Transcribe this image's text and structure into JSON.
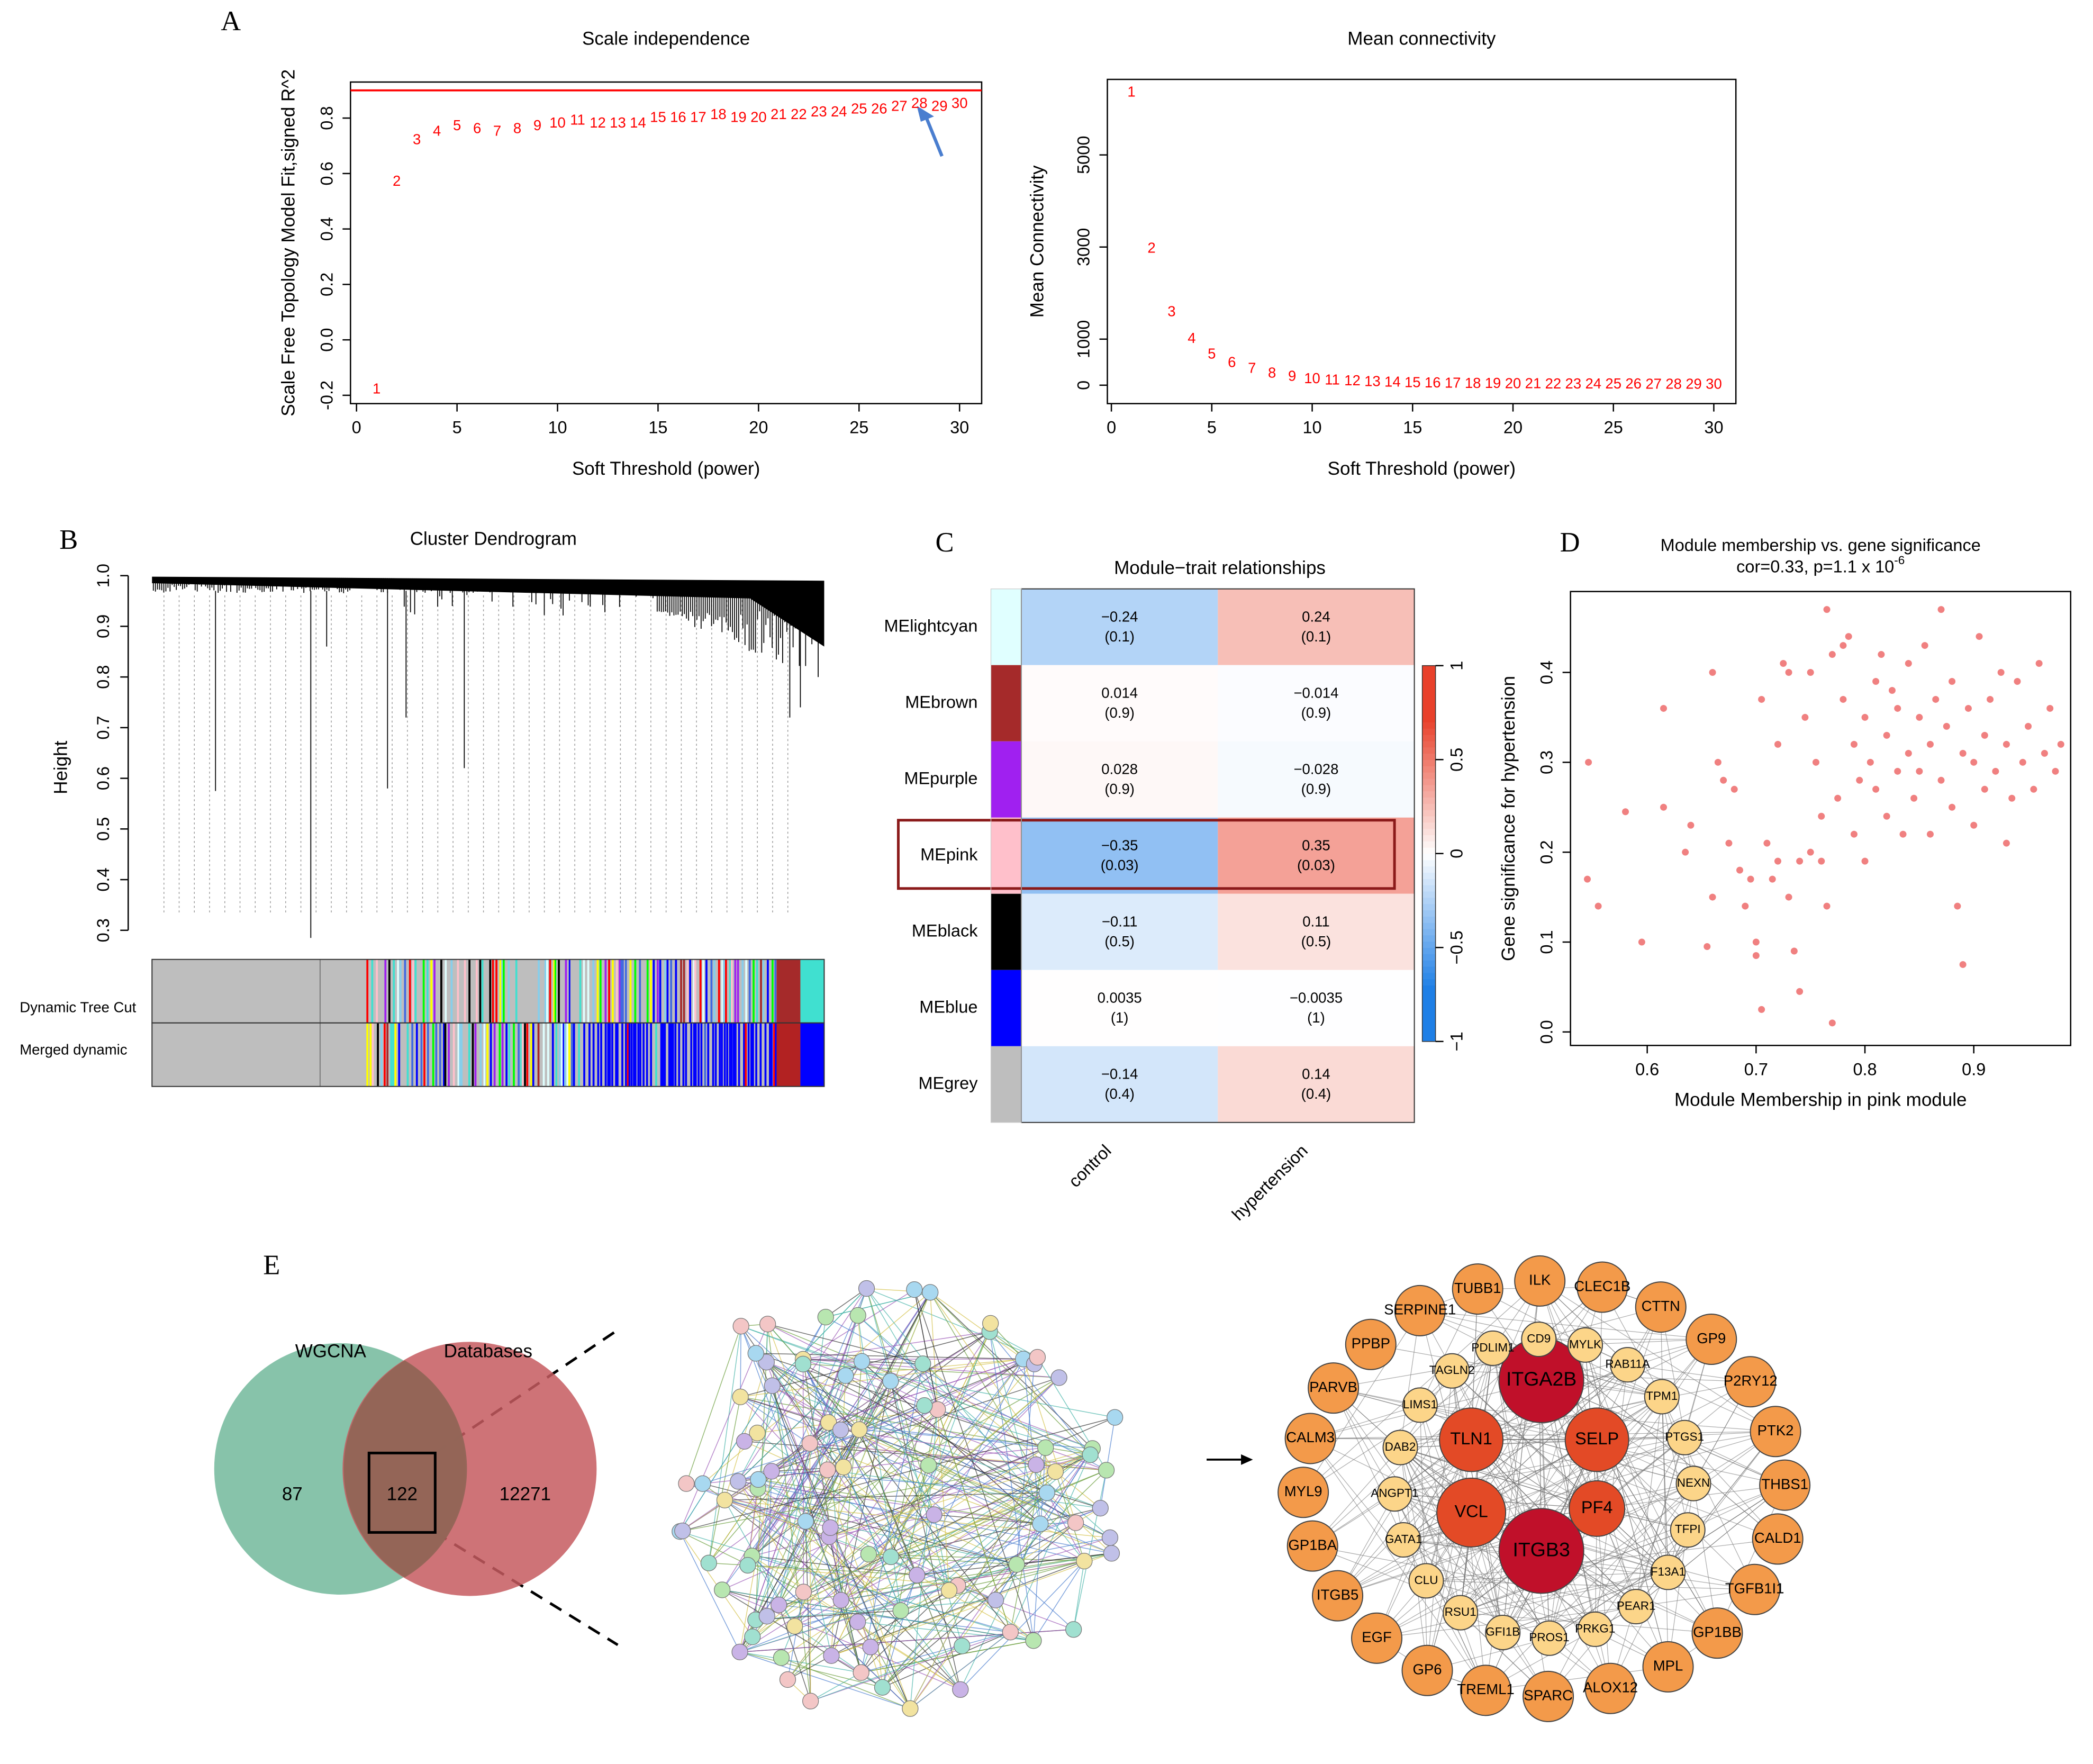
{
  "panel_labels": [
    "A",
    "B",
    "C",
    "D",
    "E"
  ],
  "chart_data": [
    {
      "type": "text-scatter",
      "title": "Scale independence",
      "xlabel": "Soft Threshold (power)",
      "ylabel": "Scale Free Topology Model Fit,signed R^2",
      "x": [
        1,
        2,
        3,
        4,
        5,
        6,
        7,
        8,
        9,
        10,
        11,
        12,
        13,
        14,
        15,
        16,
        17,
        18,
        19,
        20,
        21,
        22,
        23,
        24,
        25,
        26,
        27,
        28,
        29,
        30
      ],
      "values": [
        -0.18,
        0.57,
        0.72,
        0.75,
        0.77,
        0.76,
        0.75,
        0.76,
        0.77,
        0.78,
        0.79,
        0.78,
        0.78,
        0.78,
        0.8,
        0.8,
        0.8,
        0.81,
        0.8,
        0.8,
        0.81,
        0.81,
        0.82,
        0.82,
        0.83,
        0.83,
        0.84,
        0.85,
        0.84,
        0.85
      ],
      "color": "#ff0000",
      "hline": 0.9,
      "hline_color": "#ff0000",
      "xlim": [
        -0.3,
        31.1
      ],
      "ylim": [
        -0.23,
        0.93
      ],
      "xticks": [
        0,
        5,
        10,
        15,
        20,
        25,
        30
      ],
      "yticks": [
        -0.2,
        {
          "value": 0,
          "label": "0.0"
        },
        0.2,
        0.4,
        0.6,
        0.8
      ]
    },
    {
      "type": "text-scatter",
      "title": "Mean connectivity",
      "xlabel": "Soft Threshold (power)",
      "ylabel": "Mean Connectivity",
      "x": [
        1,
        2,
        3,
        4,
        5,
        6,
        7,
        8,
        9,
        10,
        11,
        12,
        13,
        14,
        15,
        16,
        17,
        18,
        19,
        20,
        21,
        22,
        23,
        24,
        25,
        26,
        27,
        28,
        29,
        30
      ],
      "values": [
        6350,
        2960,
        1580,
        1000,
        660,
        480,
        350,
        250,
        180,
        130,
        100,
        80,
        65,
        52,
        43,
        36,
        30,
        26,
        22,
        19,
        17,
        15,
        13,
        12,
        11,
        10,
        9,
        8,
        8,
        7
      ],
      "color": "#ff0000",
      "xlim": [
        -0.2,
        31.1
      ],
      "ylim": [
        -400,
        6640
      ],
      "xticks": [
        0,
        5,
        10,
        15,
        20,
        25,
        30
      ],
      "yticks": [
        0,
        1000,
        3000,
        5000
      ]
    },
    {
      "type": "dendrogram",
      "title": "Cluster Dendrogram",
      "ylabel": "Height",
      "ylim": [
        0.3,
        1.0
      ],
      "yticks": [
        0.3,
        0.4,
        0.5,
        0.6,
        0.7,
        0.8,
        0.9,
        {
          "value": 1,
          "label": "1.0"
        }
      ],
      "bars": [
        "Dynamic Tree Cut",
        "Merged dynamic"
      ]
    },
    {
      "type": "heatmap",
      "title": "Module−trait relationships",
      "rows": [
        "MElightcyan",
        "MEbrown",
        "MEpurple",
        "MEpink",
        "MEblack",
        "MEblue",
        "MEgrey"
      ],
      "row_colors": [
        "#e0ffff",
        "#a52a2a",
        "#a020f0",
        "#ffc0cb",
        "#000000",
        "#0000ff",
        "#bebebe"
      ],
      "columns": [
        "control",
        "hypertension"
      ],
      "values": [
        [
          -0.24,
          0.24
        ],
        [
          0.014,
          -0.014
        ],
        [
          0.028,
          -0.028
        ],
        [
          -0.35,
          0.35
        ],
        [
          -0.11,
          0.11
        ],
        [
          0.0035,
          -0.0035
        ],
        [
          -0.14,
          0.14
        ]
      ],
      "value_labels": [
        [
          "−0.24",
          "0.24"
        ],
        [
          "0.014",
          "−0.014"
        ],
        [
          "0.028",
          "−0.028"
        ],
        [
          "−0.35",
          "0.35"
        ],
        [
          "−0.11",
          "0.11"
        ],
        [
          "0.0035",
          "−0.0035"
        ],
        [
          "−0.14",
          "0.14"
        ]
      ],
      "p_values": [
        [
          0.1,
          0.1
        ],
        [
          0.9,
          0.9
        ],
        [
          0.9,
          0.9
        ],
        [
          0.03,
          0.03
        ],
        [
          0.5,
          0.5
        ],
        [
          1,
          1
        ],
        [
          0.4,
          0.4
        ]
      ],
      "p_labels": [
        [
          "(0.1)",
          "(0.1)"
        ],
        [
          "(0.9)",
          "(0.9)"
        ],
        [
          "(0.9)",
          "(0.9)"
        ],
        [
          "(0.03)",
          "(0.03)"
        ],
        [
          "(0.5)",
          "(0.5)"
        ],
        [
          "(1)",
          "(1)"
        ],
        [
          "(0.4)",
          "(0.4)"
        ]
      ],
      "highlight": "MEpink",
      "highlight_color": "#8b1a1a",
      "colors": [
        "#1e7fe6",
        "#ffffff",
        "#e8402a"
      ],
      "zlim": [
        -1,
        1
      ],
      "zticks": [
        {
          "value": -1,
          "label": "−1"
        },
        {
          "value": -0.5,
          "label": "−0.5"
        },
        0,
        0.5,
        1
      ]
    },
    {
      "type": "scatter",
      "title": "Module membership vs. gene significance",
      "subtitle": "cor=0.33, p=1.1 x 10",
      "subtitle_sup": "-6",
      "xlabel": "Module Membership in pink module",
      "ylabel": "Gene significance for  hypertension",
      "color": "#f08080",
      "x": [
        0.545,
        0.546,
        0.555,
        0.58,
        0.595,
        0.615,
        0.615,
        0.635,
        0.64,
        0.655,
        0.66,
        0.66,
        0.665,
        0.67,
        0.675,
        0.68,
        0.685,
        0.69,
        0.695,
        0.7,
        0.7,
        0.705,
        0.705,
        0.71,
        0.715,
        0.72,
        0.72,
        0.725,
        0.73,
        0.73,
        0.735,
        0.74,
        0.74,
        0.745,
        0.75,
        0.75,
        0.755,
        0.76,
        0.76,
        0.765,
        0.765,
        0.77,
        0.77,
        0.775,
        0.78,
        0.78,
        0.785,
        0.79,
        0.79,
        0.795,
        0.8,
        0.8,
        0.805,
        0.81,
        0.81,
        0.815,
        0.82,
        0.82,
        0.825,
        0.83,
        0.83,
        0.835,
        0.84,
        0.84,
        0.845,
        0.85,
        0.85,
        0.855,
        0.86,
        0.86,
        0.865,
        0.87,
        0.87,
        0.875,
        0.88,
        0.88,
        0.885,
        0.89,
        0.89,
        0.895,
        0.9,
        0.9,
        0.905,
        0.91,
        0.91,
        0.915,
        0.92,
        0.925,
        0.93,
        0.93,
        0.935,
        0.94,
        0.945,
        0.95,
        0.955,
        0.96,
        0.965,
        0.97,
        0.975,
        0.98
      ],
      "values": [
        0.17,
        0.3,
        0.14,
        0.245,
        0.1,
        0.36,
        0.25,
        0.2,
        0.23,
        0.095,
        0.4,
        0.15,
        0.3,
        0.28,
        0.21,
        0.27,
        0.18,
        0.14,
        0.17,
        0.1,
        0.085,
        0.37,
        0.025,
        0.21,
        0.17,
        0.19,
        0.32,
        0.41,
        0.4,
        0.15,
        0.09,
        0.045,
        0.19,
        0.35,
        0.4,
        0.2,
        0.3,
        0.19,
        0.24,
        0.47,
        0.14,
        0.01,
        0.42,
        0.26,
        0.37,
        0.43,
        0.44,
        0.32,
        0.22,
        0.28,
        0.35,
        0.19,
        0.3,
        0.39,
        0.27,
        0.42,
        0.33,
        0.24,
        0.38,
        0.29,
        0.36,
        0.22,
        0.41,
        0.31,
        0.26,
        0.35,
        0.29,
        0.43,
        0.32,
        0.22,
        0.37,
        0.47,
        0.28,
        0.34,
        0.39,
        0.25,
        0.14,
        0.31,
        0.075,
        0.36,
        0.3,
        0.23,
        0.44,
        0.33,
        0.27,
        0.37,
        0.29,
        0.4,
        0.32,
        0.21,
        0.26,
        0.39,
        0.3,
        0.34,
        0.27,
        0.41,
        0.31,
        0.36,
        0.29,
        0.32
      ],
      "xlim": [
        0.5295,
        0.989
      ],
      "ylim": [
        -0.015,
        0.49
      ],
      "xticks": [
        0.6,
        0.7,
        0.8,
        0.9
      ],
      "yticks": [
        {
          "value": 0,
          "label": "0.0"
        },
        0.1,
        0.2,
        0.3,
        0.4
      ]
    },
    {
      "type": "venn",
      "sets": [
        {
          "name": "WGCNA",
          "color": "#72b89b"
        },
        {
          "name": "Databases",
          "color": "#c55a5f"
        }
      ],
      "values": [
        87,
        122,
        12271
      ]
    }
  ],
  "network": {
    "groups": [
      {
        "color": "#c0102a",
        "nodes": [
          "ITGA2B",
          "ITGB3"
        ]
      },
      {
        "color": "#e34a26",
        "nodes": [
          "TLN1",
          "SELP",
          "VCL",
          "PF4"
        ]
      },
      {
        "color": "#fcd589",
        "nodes": [
          "CD9",
          "MYLK",
          "RAB11A",
          "TPM1",
          "PTGS1",
          "NEXN",
          "TFPI",
          "F13A1",
          "PEAR1",
          "PRKG1",
          "PROS1",
          "GFI1B",
          "RSU1",
          "CLU",
          "GATA1",
          "ANGPT1",
          "DAB2",
          "LIMS1",
          "TAGLN2",
          "PDLIM1"
        ]
      },
      {
        "color": "#f39a4a",
        "nodes": [
          "TUBB1",
          "ILK",
          "CLEC1B",
          "CTTN",
          "GP9",
          "P2RY12",
          "PTK2",
          "THBS1",
          "CALD1",
          "TGFB1I1",
          "GP1BB",
          "MPL",
          "ALOX12",
          "SPARC",
          "TREML1",
          "GP6",
          "EGF",
          "ITGB5",
          "GP1BA",
          "MYL9",
          "CALM3",
          "PARVB",
          "PPBP",
          "SERPINE1"
        ]
      }
    ]
  }
}
